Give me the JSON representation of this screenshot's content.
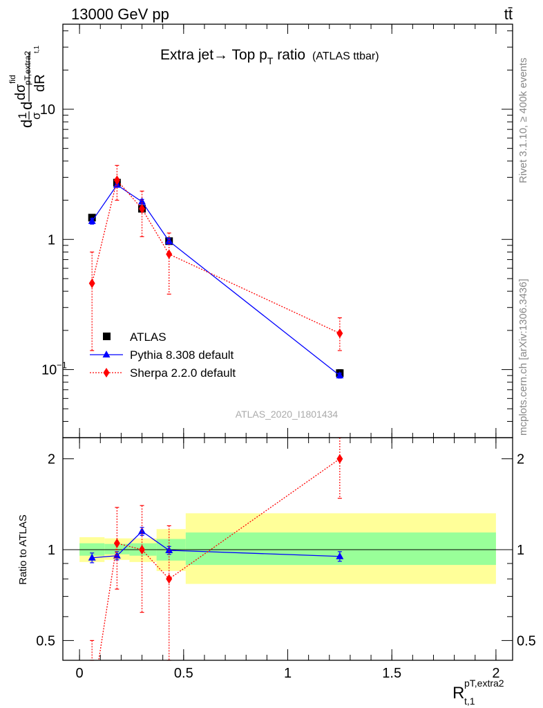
{
  "header": {
    "energy_label": "13000 GeV pp",
    "process_label": "tt̄"
  },
  "side_text": {
    "rivet": "Rivet 3.1.10, ≥ 400k events",
    "mcplots": "mcplots.cern.ch [arXiv:1306.3436]"
  },
  "chart_data": [
    {
      "type": "line",
      "title": "Extra jet→ Top pT ratio (ATLAS ttbar)",
      "title_parts": {
        "main": "Extra jet→ Top p",
        "sub": "T",
        "rest": " ratio",
        "small": "(ATLAS ttbar)"
      },
      "ylabel": "(1/σ) dσ^fid / dR_{t,1}^{pT,extra2}",
      "ylabel_parts": {
        "num": "d",
        "frac1": "1",
        "frac2": "σ",
        "d2": "d",
        "sigma": "dσ",
        "fid": "fid",
        "sub": "pT,extra2",
        "sub2": "t,1",
        "den": "dR"
      },
      "y_scale": "log",
      "ylim": [
        0.03,
        45
      ],
      "xlim": [
        -0.08,
        2.08
      ],
      "y_tick_labels": [
        {
          "value": 10,
          "label": "10"
        },
        {
          "value": 1,
          "label": "1"
        },
        {
          "value": 0.1,
          "label": "10",
          "sup": "−1"
        }
      ],
      "watermark": "ATLAS_2020_I1801434",
      "legend_position": "lower-left",
      "series": [
        {
          "name": "ATLAS",
          "color": "#000000",
          "marker": "square",
          "x": [
            0.06,
            0.18,
            0.3,
            0.43,
            1.25
          ],
          "y": [
            1.47,
            2.73,
            1.72,
            0.97,
            0.094
          ],
          "yerr": [
            0.05,
            0.07,
            0.06,
            0.04,
            0.006
          ]
        },
        {
          "name": "Pythia 8.308 default",
          "color": "#0000ff",
          "marker": "triangle",
          "line": "solid",
          "x": [
            0.06,
            0.18,
            0.3,
            0.43,
            1.25
          ],
          "y": [
            1.38,
            2.62,
            1.95,
            0.97,
            0.09
          ],
          "yerr": [
            0.07,
            0.08,
            0.08,
            0.05,
            0.004
          ]
        },
        {
          "name": "Sherpa 2.2.0 default",
          "color": "#ff0000",
          "marker": "diamond",
          "line": "dotted",
          "x": [
            0.06,
            0.18,
            0.3,
            0.43,
            1.25
          ],
          "y": [
            0.46,
            2.85,
            1.72,
            0.77,
            0.19
          ],
          "ylow": [
            0.14,
            2.0,
            1.05,
            0.38,
            0.14
          ],
          "yhigh": [
            0.8,
            3.7,
            2.35,
            1.12,
            0.25
          ]
        }
      ]
    },
    {
      "type": "line",
      "ylabel": "Ratio to ATLAS",
      "xlabel": "R_{t,1}^{pT,extra2}",
      "xlabel_parts": {
        "main": "R",
        "sup": "pT,extra2",
        "sub": "t,1"
      },
      "y_scale": "log",
      "ylim": [
        0.43,
        2.35
      ],
      "xlim": [
        -0.08,
        2.08
      ],
      "x_ticks": [
        0,
        0.5,
        1,
        1.5,
        2
      ],
      "x_tick_labels": [
        "0",
        "0.5",
        "1",
        "1.5",
        "2"
      ],
      "y_ticks": [
        0.5,
        1,
        2
      ],
      "y_tick_labels": [
        "0.5",
        "1",
        "2"
      ],
      "bins": [
        [
          0.0,
          0.12
        ],
        [
          0.12,
          0.24
        ],
        [
          0.24,
          0.37
        ],
        [
          0.37,
          0.51
        ],
        [
          0.51,
          2.0
        ]
      ],
      "band_inner": [
        [
          0.955,
          1.05
        ],
        [
          0.965,
          1.045
        ],
        [
          0.955,
          1.05
        ],
        [
          0.92,
          1.085
        ],
        [
          0.89,
          1.14
        ]
      ],
      "band_outer": [
        [
          0.91,
          1.1
        ],
        [
          0.925,
          1.09
        ],
        [
          0.91,
          1.09
        ],
        [
          0.85,
          1.17
        ],
        [
          0.77,
          1.32
        ]
      ],
      "band_inner_color": "#99ff99",
      "band_outer_color": "#ffff99",
      "series": [
        {
          "name": "Pythia 8.308 default",
          "color": "#0000ff",
          "marker": "triangle",
          "line": "solid",
          "x": [
            0.06,
            0.18,
            0.3,
            0.43,
            1.25
          ],
          "y": [
            0.94,
            0.955,
            1.15,
            0.995,
            0.95
          ],
          "yerr": [
            0.035,
            0.03,
            0.035,
            0.03,
            0.035
          ]
        },
        {
          "name": "Sherpa 2.2.0 default",
          "color": "#ff0000",
          "marker": "diamond",
          "line": "dotted",
          "x": [
            0.06,
            0.18,
            0.3,
            0.43,
            1.25
          ],
          "y": [
            0.31,
            1.05,
            1.0,
            0.8,
            2.0
          ],
          "ylow": [
            0.2,
            0.74,
            0.62,
            0.4,
            1.48
          ],
          "yhigh": [
            0.5,
            1.38,
            1.4,
            1.2,
            2.35
          ]
        }
      ]
    }
  ]
}
